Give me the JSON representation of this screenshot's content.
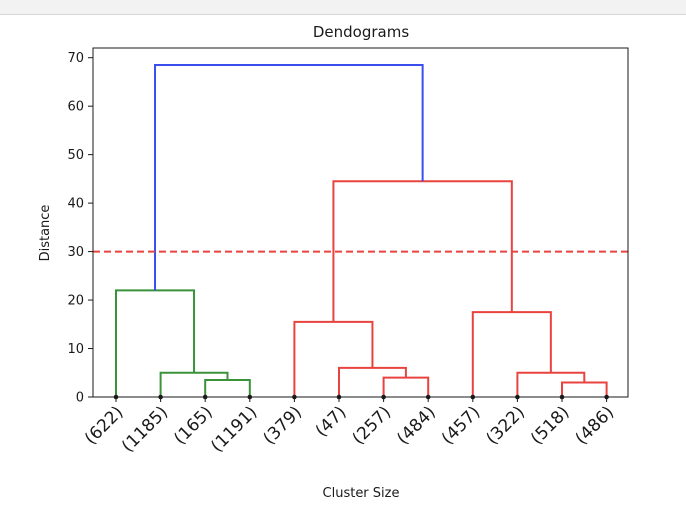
{
  "chart_data": {
    "type": "dendrogram",
    "title": "Dendograms",
    "xlabel": "Cluster Size",
    "ylabel": "Distance",
    "ylim": [
      0,
      72
    ],
    "yticks": [
      0,
      10,
      20,
      30,
      40,
      50,
      60,
      70
    ],
    "grid": false,
    "leaves": [
      "(622)",
      "(1185)",
      "(165)",
      "(1191)",
      "(379)",
      "(47)",
      "(257)",
      "(484)",
      "(457)",
      "(322)",
      "(518)",
      "(486)"
    ],
    "merges": [
      {
        "left": 2,
        "right": 3,
        "height": 3.5,
        "color": "#3a923a"
      },
      {
        "left": 1,
        "right": 12,
        "height": 5.0,
        "color": "#3a923a"
      },
      {
        "left": 0,
        "right": 13,
        "height": 22.0,
        "color": "#3a923a"
      },
      {
        "left": 6,
        "right": 7,
        "height": 4.0,
        "color": "#e8433f"
      },
      {
        "left": 5,
        "right": 15,
        "height": 6.0,
        "color": "#e8433f"
      },
      {
        "left": 4,
        "right": 16,
        "height": 15.5,
        "color": "#e8433f"
      },
      {
        "left": 10,
        "right": 11,
        "height": 3.0,
        "color": "#e8433f"
      },
      {
        "left": 9,
        "right": 18,
        "height": 5.0,
        "color": "#e8433f"
      },
      {
        "left": 8,
        "right": 19,
        "height": 17.5,
        "color": "#e8433f"
      },
      {
        "left": 17,
        "right": 20,
        "height": 44.5,
        "color": "#e8433f"
      },
      {
        "left": 14,
        "right": 21,
        "height": 68.5,
        "color": "#3a4ef0"
      }
    ],
    "threshold": {
      "value": 30,
      "color": "#e8433f",
      "style": "dashed"
    },
    "leaf_markers": true
  }
}
